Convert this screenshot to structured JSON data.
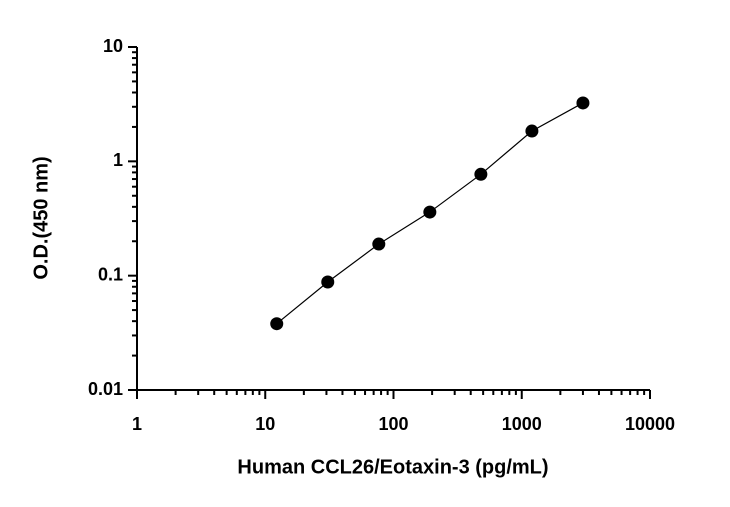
{
  "chart_data": {
    "type": "scatter",
    "x_label": "Human CCL26/Eotaxin-3 (pg/mL)",
    "y_label": "O.D.(450 nm)",
    "x": [
      12.29,
      30.72,
      76.8,
      192,
      480,
      1200,
      3000
    ],
    "y": [
      0.038,
      0.088,
      0.189,
      0.36,
      0.77,
      1.84,
      3.24
    ],
    "color": "#000000",
    "fit_line": true,
    "xscale": "log",
    "yscale": "log",
    "xlim": [
      1,
      10000
    ],
    "xticks": [
      1,
      10,
      100,
      1000,
      10000
    ],
    "ylim": [
      0.01,
      10
    ],
    "yticks": [
      0.01,
      0.1,
      1,
      10
    ]
  }
}
